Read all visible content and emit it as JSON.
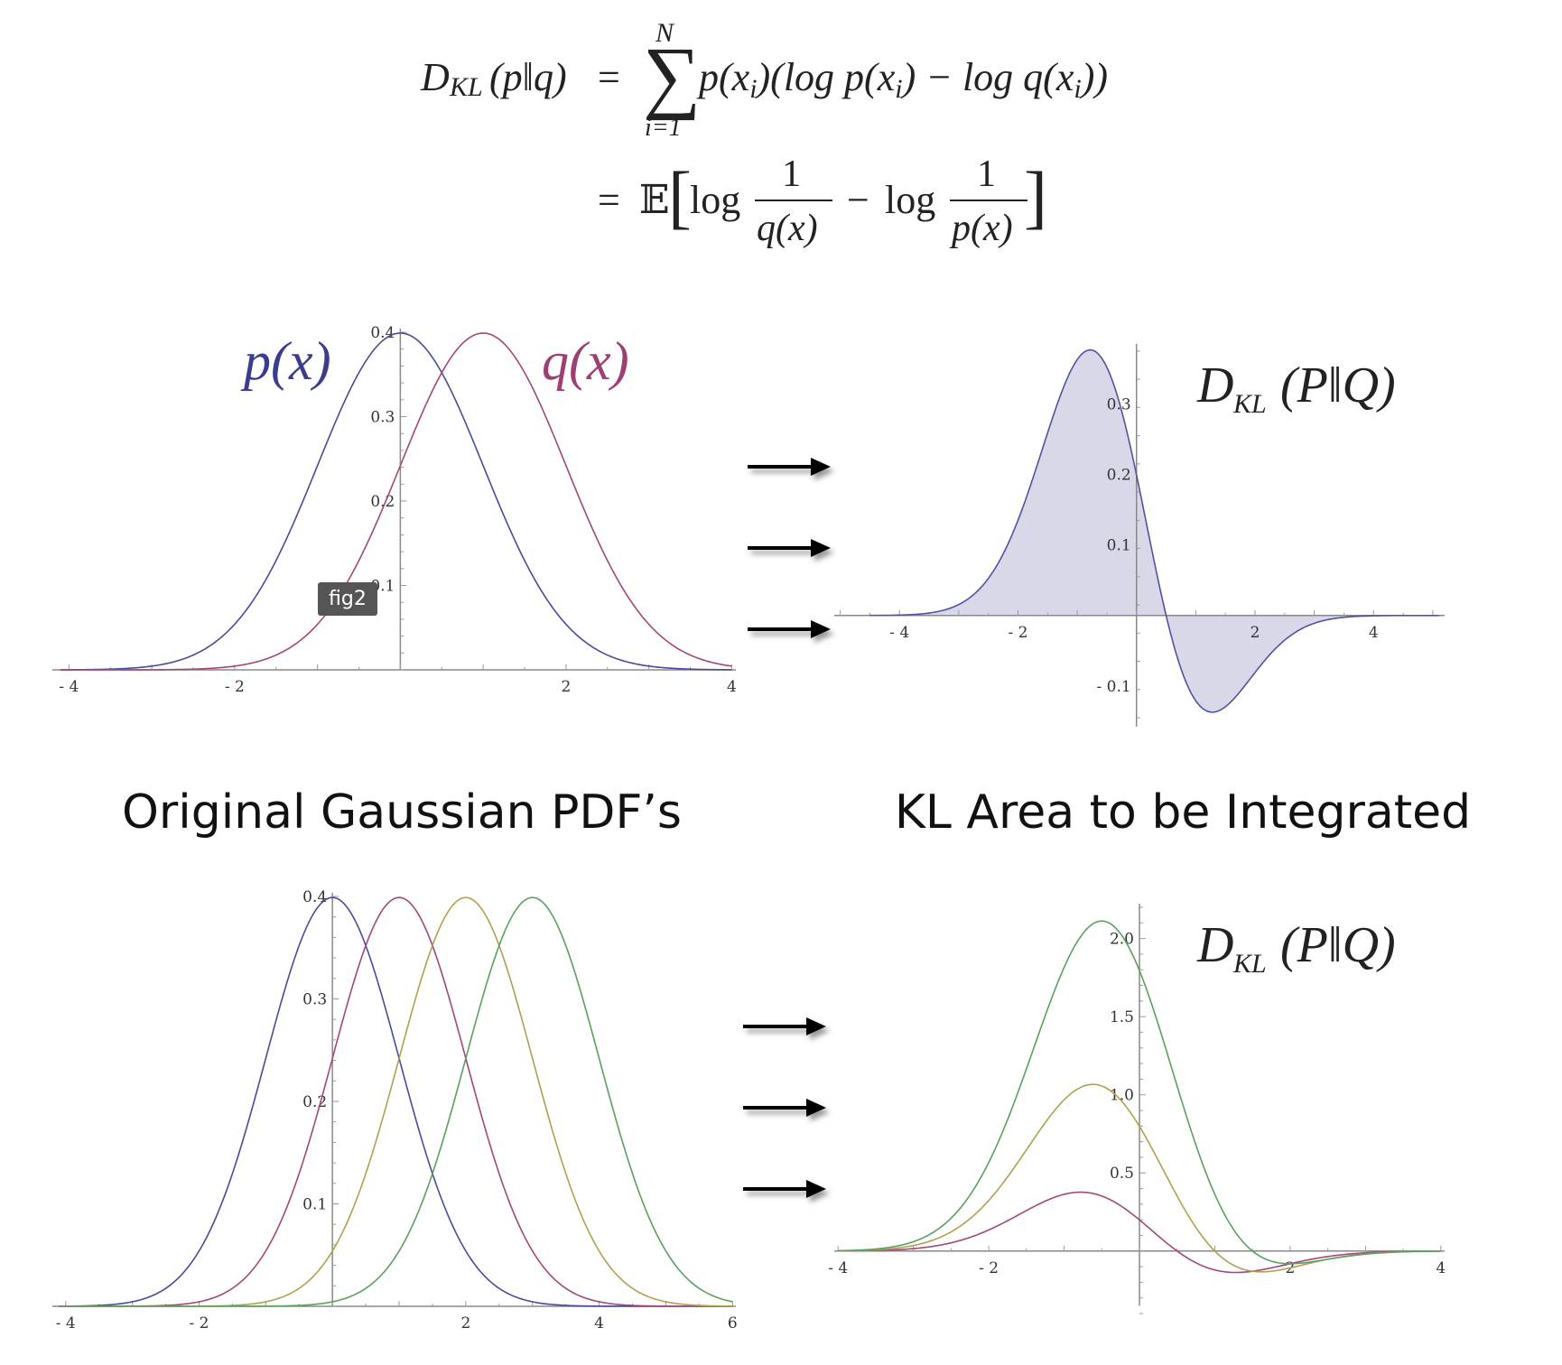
{
  "formula": {
    "line1": {
      "lhs_D": "D",
      "lhs_sub": "KL",
      "lhs_args": "(p‖q)",
      "eq": "=",
      "sum_sym": "∑",
      "sum_upper": "N",
      "sum_lower": "i=1",
      "body": "p(x",
      "body_sub": "i",
      "body_rest": ")(log p(x",
      "body_sub2": "i",
      "body_rest2": ") − log q(x",
      "body_sub3": "i",
      "body_rest3": "))"
    },
    "line2": {
      "eq": "=",
      "E": "𝔼",
      "lb": "[",
      "log1": "log",
      "num1": "1",
      "den1": "q(x)",
      "minus": "−",
      "log2": "log",
      "num2": "1",
      "den2": "p(x)",
      "rb": "]"
    }
  },
  "captions": {
    "left": "Original Gaussian PDF’s",
    "right": "KL Area to be Integrated"
  },
  "badge": "fig2",
  "chart_data": [
    {
      "type": "line",
      "name": "top-left",
      "xlim": [
        -4.2,
        4.05
      ],
      "ylim": [
        0,
        0.4
      ],
      "xticks": [
        -4,
        -2,
        2,
        4
      ],
      "xtick_labels": [
        "- 4",
        "- 2",
        "2",
        "4"
      ],
      "yticks": [
        0.1,
        0.2,
        0.3,
        0.4
      ],
      "ytick_labels": [
        "0.1",
        "0.2",
        "0.3",
        "0.4"
      ],
      "series": [
        {
          "name": "p(x)",
          "mean": 0,
          "sd": 1,
          "color": "#4a4a9c"
        },
        {
          "name": "q(x)",
          "mean": 1,
          "sd": 1,
          "color": "#a0487a"
        }
      ],
      "labels": [
        {
          "text": "p(x)",
          "color": "#3b3b8f"
        },
        {
          "text": "q(x)",
          "color": "#9e3f73"
        }
      ]
    },
    {
      "type": "area",
      "name": "top-right",
      "xlim": [
        -5.1,
        5.2
      ],
      "ylim": [
        -0.145,
        0.38
      ],
      "xticks": [
        -4,
        -2,
        2,
        4
      ],
      "xtick_labels": [
        "- 4",
        "- 2",
        "2",
        "4"
      ],
      "yticks": [
        -0.1,
        0.1,
        0.2,
        0.3
      ],
      "ytick_labels": [
        "- 0.1",
        "0.1",
        "0.2",
        "0.3"
      ],
      "series": [
        {
          "mean_p": 0,
          "mean_q": 1,
          "color": "#5252a0",
          "fill": "#d8d8e8"
        }
      ],
      "title": "D_KL(P‖Q)",
      "title_D": "D",
      "title_sub": "KL",
      "title_args": "(P‖Q)"
    },
    {
      "type": "line",
      "name": "bottom-left",
      "xlim": [
        -4.2,
        6.05
      ],
      "ylim": [
        0,
        0.4
      ],
      "xticks": [
        -4,
        -2,
        2,
        4,
        6
      ],
      "xtick_labels": [
        "- 4",
        "- 2",
        "2",
        "4",
        "6"
      ],
      "yticks": [
        0.1,
        0.2,
        0.3,
        0.4
      ],
      "ytick_labels": [
        "0.1",
        "0.2",
        "0.3",
        "0.4"
      ],
      "series": [
        {
          "mean": 0,
          "sd": 1,
          "color": "#4a4a9c"
        },
        {
          "mean": 1,
          "sd": 1,
          "color": "#a0487a"
        },
        {
          "mean": 2,
          "sd": 1,
          "color": "#b0a050"
        },
        {
          "mean": 3,
          "sd": 1,
          "color": "#5aa060"
        }
      ]
    },
    {
      "type": "line",
      "name": "bottom-right",
      "xlim": [
        -4.05,
        4.05
      ],
      "ylim": [
        -0.4,
        2.2
      ],
      "xticks": [
        -4,
        -2,
        2,
        4
      ],
      "xtick_labels": [
        "- 4",
        "- 2",
        "2",
        "4"
      ],
      "yticks": [
        0.5,
        1.0,
        1.5,
        2.0
      ],
      "ytick_labels": [
        "0.5",
        "1.0",
        "1.5",
        "2.0"
      ],
      "series": [
        {
          "mean_p": 0,
          "mean_q": 1,
          "color": "#a0487a"
        },
        {
          "mean_p": 0,
          "mean_q": 2,
          "color": "#b0a050"
        },
        {
          "mean_p": 0,
          "mean_q": 3,
          "color": "#5aa060"
        }
      ],
      "title": "D_KL(P‖Q)",
      "title_D": "D",
      "title_sub": "KL",
      "title_args": "(P‖Q)"
    }
  ]
}
